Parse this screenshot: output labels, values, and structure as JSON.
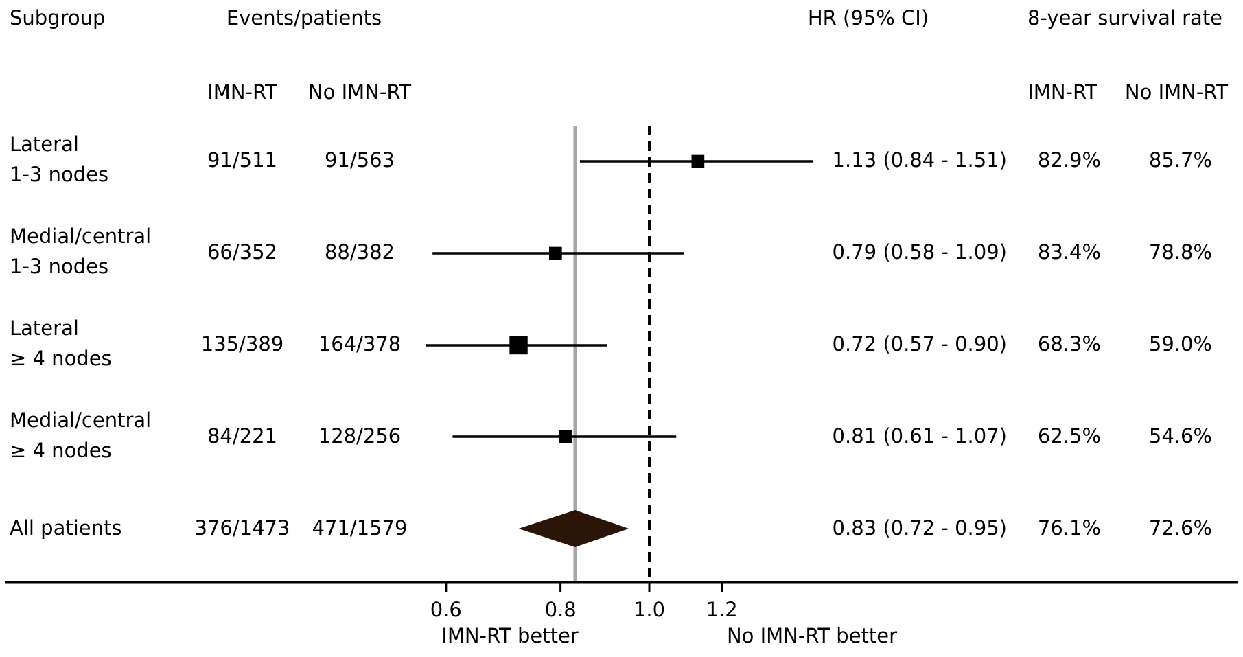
{
  "headers": {
    "subgroup": "Subgroup",
    "events": "Events/patients",
    "hr": "HR (95% CI)",
    "survival": "8-year survival rate",
    "arm_a": "IMN-RT",
    "arm_b": "No IMN-RT",
    "surv_a": "IMN-RT",
    "surv_b": "No IMN-RT"
  },
  "rows": [
    {
      "label1": "Lateral",
      "label2": "1-3 nodes",
      "ev_a": "91/511",
      "ev_b": "91/563",
      "hr_text": "1.13 (0.84 - 1.51)",
      "surv_a": "82.9%",
      "surv_b": "85.7%"
    },
    {
      "label1": "Medial/central",
      "label2": "1-3 nodes",
      "ev_a": "66/352",
      "ev_b": "88/382",
      "hr_text": "0.79 (0.58 - 1.09)",
      "surv_a": "83.4%",
      "surv_b": "78.8%"
    },
    {
      "label1": "Lateral",
      "label2": "≥ 4 nodes",
      "ev_a": "135/389",
      "ev_b": "164/378",
      "hr_text": "0.72 (0.57 - 0.90)",
      "surv_a": "68.3%",
      "surv_b": "59.0%"
    },
    {
      "label1": "Medial/central",
      "label2": "≥ 4 nodes",
      "ev_a": "84/221",
      "ev_b": "128/256",
      "hr_text": "0.81 (0.61 - 1.07)",
      "surv_a": "62.5%",
      "surv_b": "54.6%"
    },
    {
      "label1": "All patients",
      "label2": "",
      "ev_a": "376/1473",
      "ev_b": "471/1579",
      "hr_text": "0.83 (0.72 - 0.95)",
      "surv_a": "76.1%",
      "surv_b": "72.6%"
    }
  ],
  "chart_data": {
    "type": "forest",
    "x_scale": "log",
    "x_ticks": [
      0.6,
      0.8,
      1.0,
      1.2
    ],
    "x_tick_labels": [
      "0.6",
      "0.8",
      "1.0",
      "1.2"
    ],
    "x_range": [
      0.55,
      1.55
    ],
    "reference_line": 1.0,
    "overall_line": 0.83,
    "estimates": [
      {
        "hr": 1.13,
        "lo": 0.84,
        "hi": 1.51,
        "marker": "square",
        "weight": 0.85
      },
      {
        "hr": 0.79,
        "lo": 0.58,
        "hi": 1.09,
        "marker": "square",
        "weight": 0.85
      },
      {
        "hr": 0.72,
        "lo": 0.57,
        "hi": 0.9,
        "marker": "square",
        "weight": 1.2
      },
      {
        "hr": 0.81,
        "lo": 0.61,
        "hi": 1.07,
        "marker": "square",
        "weight": 0.85
      },
      {
        "hr": 0.83,
        "lo": 0.72,
        "hi": 0.95,
        "marker": "diamond",
        "weight": 1.0
      }
    ],
    "xlabel_left": "IMN-RT better",
    "xlabel_right": "No IMN-RT better",
    "colors": {
      "marker": "#000000",
      "diamond": "#2b1408",
      "overall_line": "#a6a6a6",
      "axis": "#000000"
    }
  }
}
